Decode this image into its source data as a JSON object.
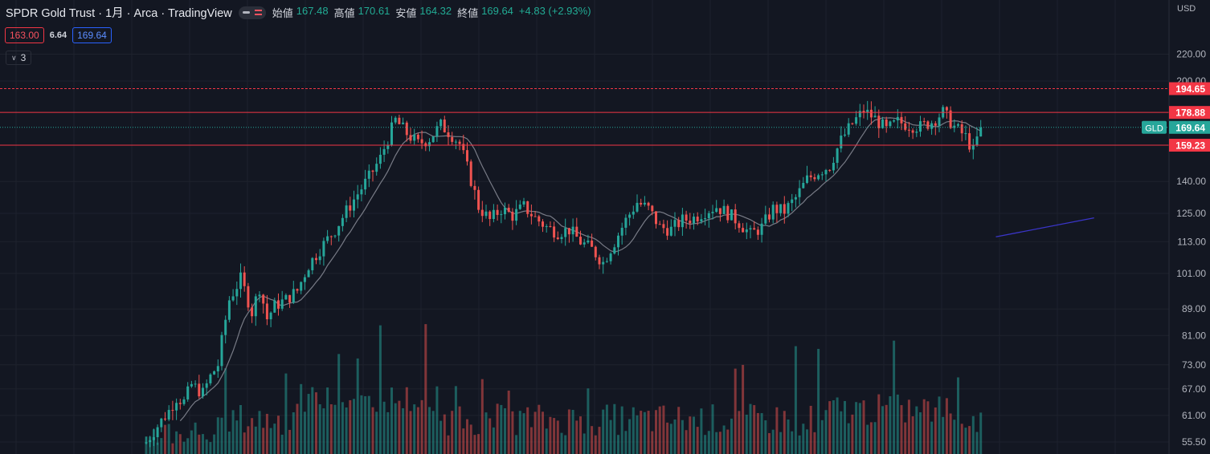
{
  "header": {
    "symbol": "SPDR Gold Trust · 1月 · Arca · TradingView",
    "ohlc": [
      {
        "key": "始値",
        "value": "167.48"
      },
      {
        "key": "高値",
        "value": "170.61"
      },
      {
        "key": "安値",
        "value": "164.32"
      },
      {
        "key": "終値",
        "value": "169.64"
      }
    ],
    "change": "+4.83 (+2.93%)",
    "sell_price": "163.00",
    "spread": "6.64",
    "buy_price": "169.64",
    "indicators_count": "3",
    "currency": "USD"
  },
  "colors": {
    "background": "#131722",
    "up": "#26a69a",
    "down": "#ef5350",
    "hline": "#f23645",
    "ma": "#787b86",
    "trend": "#3a35c8"
  },
  "chart_data": {
    "type": "candlestick",
    "y_scale": "log",
    "y_ticks": [
      220,
      200,
      140,
      125,
      113,
      101,
      89,
      81,
      73,
      67,
      61,
      55.5
    ],
    "y_tick_labels": [
      "220.00",
      "200.00",
      "140.00",
      "125.00",
      "113.00",
      "101.00",
      "89.00",
      "81.00",
      "73.00",
      "67.00",
      "61.00",
      "55.50"
    ],
    "horizontal_levels": [
      {
        "value": 194.65,
        "label": "194.65",
        "style": "dashed"
      },
      {
        "value": 178.88,
        "label": "178.88",
        "style": "solid"
      },
      {
        "value": 159.23,
        "label": "159.23",
        "style": "solid"
      }
    ],
    "last_price": {
      "value": 169.64,
      "label": "169.64",
      "symbol_tag": "GLD"
    },
    "trend_line": {
      "from": [
        225,
        115
      ],
      "to": [
        251,
        123
      ]
    },
    "ma_period": 10,
    "anchors": [
      [
        0,
        55.5
      ],
      [
        6,
        62
      ],
      [
        8,
        65
      ],
      [
        10,
        64
      ],
      [
        12,
        68
      ],
      [
        15,
        66
      ],
      [
        17,
        70
      ],
      [
        19,
        73
      ],
      [
        22,
        92
      ],
      [
        25,
        99
      ],
      [
        28,
        88
      ],
      [
        30,
        96
      ],
      [
        32,
        86
      ],
      [
        34,
        90
      ],
      [
        37,
        92
      ],
      [
        40,
        95
      ],
      [
        43,
        104
      ],
      [
        47,
        112
      ],
      [
        50,
        118
      ],
      [
        53,
        126
      ],
      [
        56,
        134
      ],
      [
        59,
        142
      ],
      [
        62,
        152
      ],
      [
        64,
        163
      ],
      [
        66,
        174
      ],
      [
        69,
        166
      ],
      [
        72,
        160
      ],
      [
        75,
        163
      ],
      [
        78,
        171
      ],
      [
        81,
        165
      ],
      [
        83,
        160
      ],
      [
        85,
        147
      ],
      [
        88,
        128
      ],
      [
        91,
        122
      ],
      [
        94,
        127
      ],
      [
        97,
        124
      ],
      [
        100,
        128
      ],
      [
        103,
        123
      ],
      [
        106,
        119
      ],
      [
        109,
        117
      ],
      [
        112,
        118
      ],
      [
        115,
        113
      ],
      [
        118,
        110
      ],
      [
        121,
        105
      ],
      [
        124,
        113
      ],
      [
        127,
        122
      ],
      [
        130,
        130
      ],
      [
        133,
        127
      ],
      [
        136,
        119
      ],
      [
        139,
        118
      ],
      [
        142,
        122
      ],
      [
        145,
        123
      ],
      [
        148,
        126
      ],
      [
        151,
        128
      ],
      [
        154,
        125
      ],
      [
        157,
        121
      ],
      [
        160,
        116
      ],
      [
        163,
        119
      ],
      [
        166,
        127
      ],
      [
        169,
        126
      ],
      [
        172,
        132
      ],
      [
        175,
        141
      ],
      [
        178,
        145
      ],
      [
        181,
        148
      ],
      [
        184,
        162
      ],
      [
        187,
        172
      ],
      [
        190,
        180
      ],
      [
        193,
        175
      ],
      [
        196,
        168
      ],
      [
        199,
        173
      ],
      [
        202,
        171
      ],
      [
        205,
        170
      ],
      [
        208,
        173
      ],
      [
        211,
        179
      ],
      [
        214,
        170
      ],
      [
        217,
        164
      ],
      [
        219,
        156
      ],
      [
        221,
        169.64
      ]
    ]
  }
}
